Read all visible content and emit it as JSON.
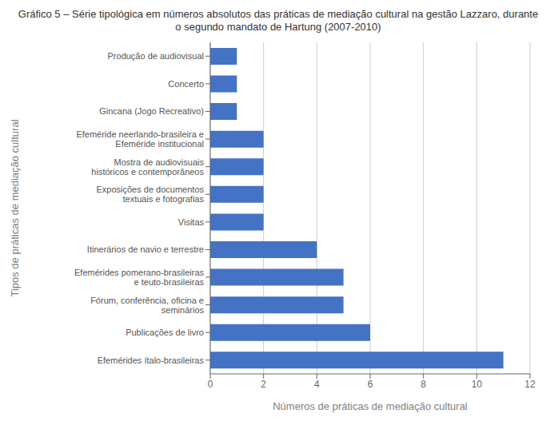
{
  "chart_data": {
    "type": "bar",
    "orientation": "horizontal",
    "title": "Gráfico 5 – Série tipológica em números absolutos das práticas de mediação cultural na  gestão Lazzaro, durante o segundo mandato de Hartung (2007-2010)",
    "categories": [
      "Produção de audiovisual",
      "Concerto",
      "Gincana (Jogo Recreativo)",
      "Efeméride neerlando-brasileira e Efeméride institucional",
      "Mostra de audiovisuais históricos e contemporâneos",
      "Exposições de documentos textuais e fotografias",
      "Visitas",
      "Itinerários de navio e terrestre",
      "Efemérides  pomerano-brasileiras e teuto-brasileiras",
      "Fórum, conferência, oficina e seminários",
      "Publicações de livro",
      "Efemérides ítalo-brasileiras"
    ],
    "values": [
      1,
      1,
      1,
      2,
      2,
      2,
      2,
      4,
      5,
      5,
      6,
      11
    ],
    "color": "#4472C4",
    "xlabel": "Números de práticas de mediação cultural",
    "ylabel": "Tipos de práticas de mediação cultural",
    "xlim": [
      0,
      12
    ],
    "xticks": [
      0,
      2,
      4,
      6,
      8,
      10,
      12
    ],
    "grid": true
  }
}
